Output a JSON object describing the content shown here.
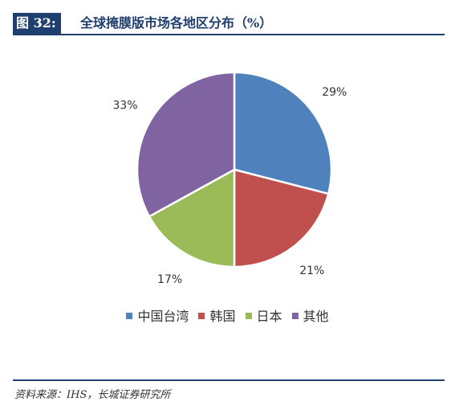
{
  "figure": {
    "label": "图 32:",
    "title": "全球掩膜版市场各地区分布（%）"
  },
  "chart_data": {
    "type": "pie",
    "categories": [
      "中国台湾",
      "韩国",
      "日本",
      "其他"
    ],
    "values": [
      29,
      21,
      17,
      33
    ],
    "value_labels": [
      "29%",
      "21%",
      "17%",
      "33%"
    ],
    "colors": [
      "#4f81bd",
      "#c0504d",
      "#9bbb59",
      "#8064a2"
    ],
    "start": "12 o'clock",
    "direction": "clockwise",
    "legend_position": "bottom"
  },
  "source": "资料来源：IHS，长城证券研究所"
}
